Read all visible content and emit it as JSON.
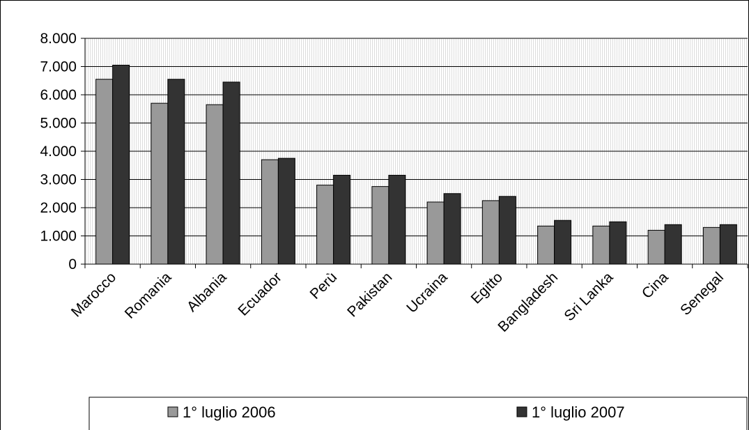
{
  "chart_data": {
    "type": "bar",
    "categories": [
      "Marocco",
      "Romania",
      "Albania",
      "Ecuador",
      "Perù",
      "Pakistan",
      "Ucraina",
      "Egitto",
      "Bangladesh",
      "Sri Lanka",
      "Cina",
      "Senegal"
    ],
    "series": [
      {
        "name": "1° luglio 2006",
        "values": [
          6550,
          5700,
          5650,
          3700,
          2800,
          2750,
          2200,
          2250,
          1350,
          1350,
          1200,
          1300
        ],
        "color": "#999999"
      },
      {
        "name": "1° luglio 2007",
        "values": [
          7050,
          6550,
          6450,
          3750,
          3150,
          3150,
          2500,
          2400,
          1550,
          1500,
          1400,
          1400
        ],
        "color": "#333333"
      }
    ],
    "y_ticks": [
      "0",
      "1.000",
      "2.000",
      "3.000",
      "4.000",
      "5.000",
      "6.000",
      "7.000",
      "8.000"
    ],
    "ylim": [
      0,
      8000
    ],
    "grid": true,
    "legend_position": "bottom"
  }
}
